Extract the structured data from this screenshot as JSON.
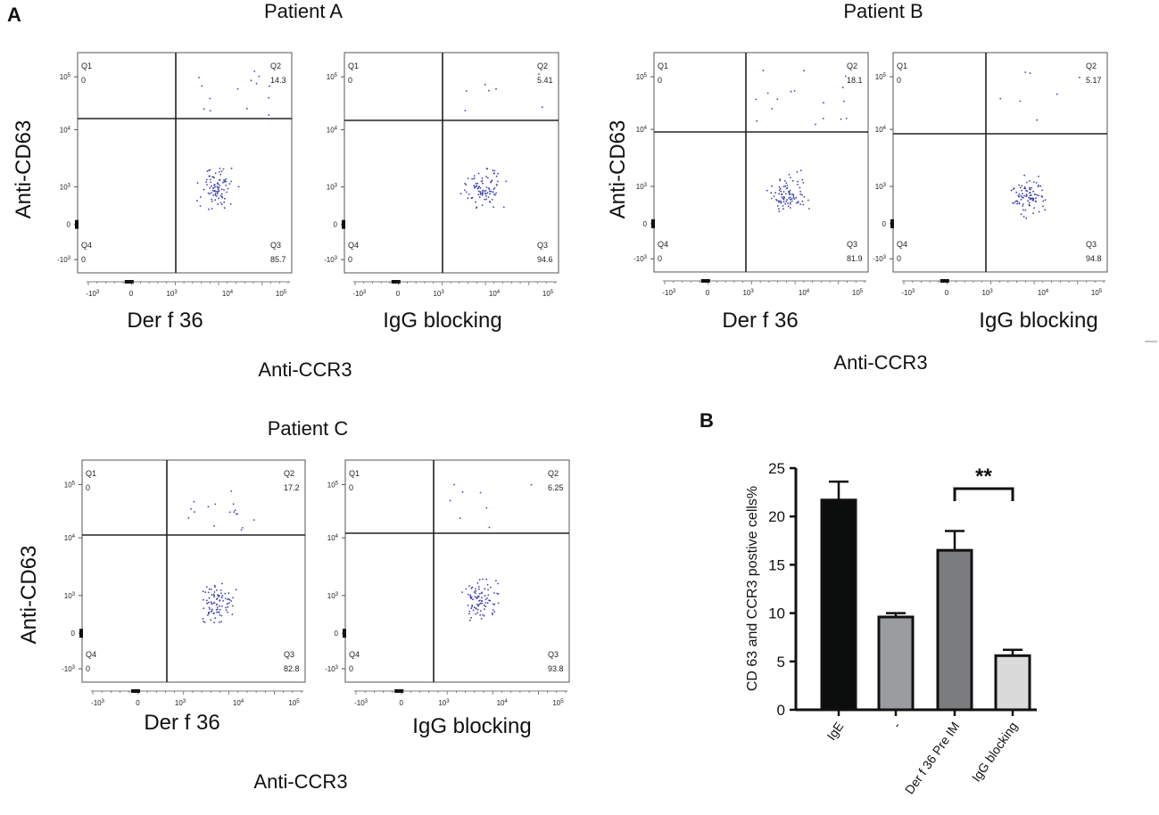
{
  "panel_labels": {
    "a": "A",
    "b": "B"
  },
  "patients": [
    {
      "title": "Patient A",
      "y_axis_label": "Anti-CD63",
      "x_axis_label": "Anti-CCR3",
      "plots": [
        {
          "condition": "Der f 36",
          "quadrants": {
            "q1": {
              "label": "Q1",
              "value": "0"
            },
            "q2": {
              "label": "Q2",
              "value": "14.3"
            },
            "q3": {
              "label": "Q3",
              "value": "85.7"
            },
            "q4": {
              "label": "Q4",
              "value": "0"
            }
          }
        },
        {
          "condition": "IgG blocking",
          "quadrants": {
            "q1": {
              "label": "Q1",
              "value": "0"
            },
            "q2": {
              "label": "Q2",
              "value": "5.41"
            },
            "q3": {
              "label": "Q3",
              "value": "94.6"
            },
            "q4": {
              "label": "Q4",
              "value": "0"
            }
          }
        }
      ]
    },
    {
      "title": "Patient B",
      "y_axis_label": "Anti-CD63",
      "x_axis_label": "Anti-CCR3",
      "plots": [
        {
          "condition": "Der f 36",
          "quadrants": {
            "q1": {
              "label": "Q1",
              "value": "0"
            },
            "q2": {
              "label": "Q2",
              "value": "18.1"
            },
            "q3": {
              "label": "Q3",
              "value": "81.9"
            },
            "q4": {
              "label": "Q4",
              "value": "0"
            }
          }
        },
        {
          "condition": "IgG blocking",
          "quadrants": {
            "q1": {
              "label": "Q1",
              "value": "0"
            },
            "q2": {
              "label": "Q2",
              "value": "5.17"
            },
            "q3": {
              "label": "Q3",
              "value": "94.8"
            },
            "q4": {
              "label": "Q4",
              "value": "0"
            }
          }
        }
      ]
    },
    {
      "title": "Patient C",
      "y_axis_label": "Anti-CD63",
      "x_axis_label": "Anti-CCR3",
      "plots": [
        {
          "condition": "Der f 36",
          "quadrants": {
            "q1": {
              "label": "Q1",
              "value": "0"
            },
            "q2": {
              "label": "Q2",
              "value": "17.2"
            },
            "q3": {
              "label": "Q3",
              "value": "82.8"
            },
            "q4": {
              "label": "Q4",
              "value": "0"
            }
          }
        },
        {
          "condition": "IgG blocking",
          "quadrants": {
            "q1": {
              "label": "Q1",
              "value": "0"
            },
            "q2": {
              "label": "Q2",
              "value": "6.25"
            },
            "q3": {
              "label": "Q3",
              "value": "93.8"
            },
            "q4": {
              "label": "Q4",
              "value": "0"
            }
          }
        }
      ]
    }
  ],
  "flow_ticks": {
    "x": [
      "-10",
      "0",
      "10",
      "10",
      "10"
    ],
    "x_exp": [
      "3",
      "",
      "3",
      "4",
      "5"
    ],
    "y": [
      "10",
      "10",
      "10",
      "0",
      "-10"
    ],
    "y_exp": [
      "5",
      "4",
      "3",
      "",
      "3"
    ]
  },
  "chart_data": {
    "type": "bar",
    "title": "",
    "ylabel": "CD 63 and CCR3 postive cells%",
    "categories": [
      "IgE",
      "-",
      "Der f 36 Pre IM",
      "IgG blocking"
    ],
    "values": [
      21.7,
      9.6,
      16.5,
      5.6
    ],
    "errors": [
      1.9,
      0.4,
      2.0,
      0.6
    ],
    "colors": [
      "#0b0d0d",
      "#9b9ca0",
      "#7b7c7e",
      "#d9dad9"
    ],
    "ylim": [
      0,
      25
    ],
    "yticks": [
      "0",
      "5",
      "10",
      "15",
      "20",
      "25"
    ],
    "significance": {
      "label": "**",
      "from": "Der f 36 Pre IM",
      "to": "IgG blocking"
    }
  }
}
